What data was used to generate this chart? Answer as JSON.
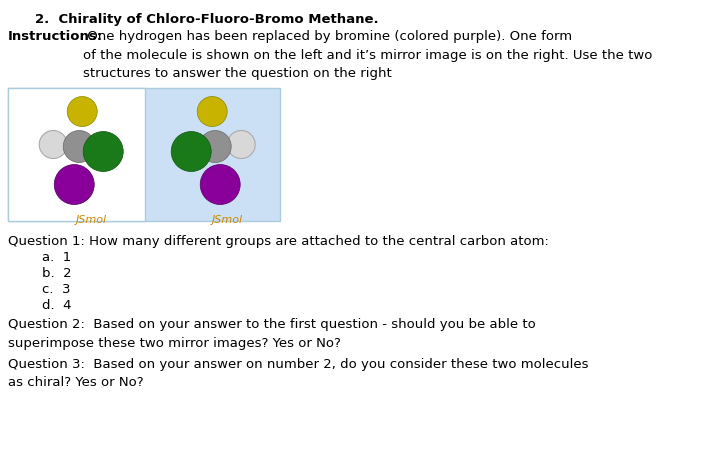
{
  "title": "2.  Chirality of Chloro-Fluoro-Bromo Methane.",
  "instr_bold": "Instructions:",
  "instr_rest": " One hydrogen has been replaced by bromine (colored purple). One form\nof the molecule is shown on the left and it’s mirror image is on the right. Use the two\nstructures to answer the question on the right",
  "jsmol_label": "JSmol",
  "q1_text": "Question 1: How many different groups are attached to the central carbon atom:",
  "q1_options": [
    "a.  1",
    "b.  2",
    "c.  3",
    "d.  4"
  ],
  "q2_text": "Question 2:  Based on your answer to the first question - should you be able to\nsuperimpose these two mirror images? Yes or No?",
  "q3_text": "Question 3:  Based on your answer on number 2, do you consider these two molecules\nas chiral? Yes or No?",
  "bg_color": "#ffffff",
  "text_color": "#000000",
  "box_outer_bg": "#cce0f5",
  "box_outer_border": "#aaccdd",
  "box_left_bg": "#ffffff",
  "box_right_bg": "#cce0f5",
  "jsmol_color": "#cc8800",
  "atom_gray": "#909090",
  "atom_yellow": "#c8b400",
  "atom_green": "#1a7a1a",
  "atom_purple": "#880099",
  "atom_white": "#d8d8d8",
  "atom_white_edge": "#aaaaaa",
  "title_fontsize": 9.5,
  "body_fontsize": 9.5,
  "jsmol_fontsize": 8
}
